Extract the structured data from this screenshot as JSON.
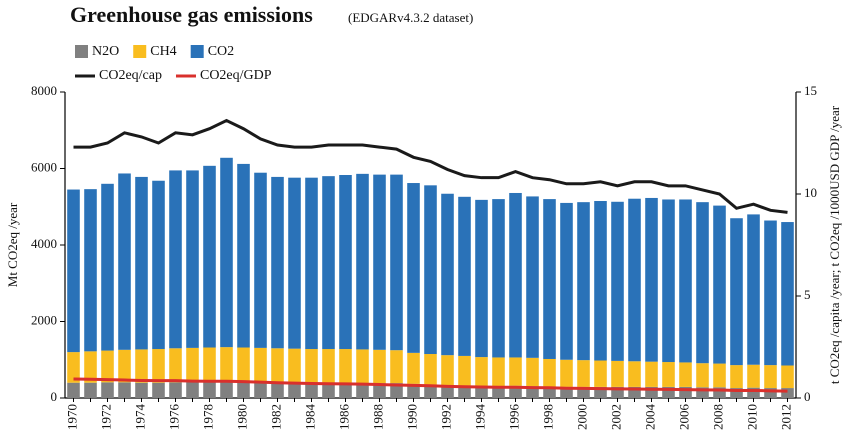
{
  "chart_data": {
    "type": "bar",
    "stacked": true,
    "title": "Greenhouse gas emissions",
    "subtitle": "(EDGARv4.3.2 dataset)",
    "y_label": "Mt CO2eq /year",
    "y2_label": "t CO2eq /capita /year; t CO2eq /1000USD GDP /year",
    "categories": [
      "1970",
      null,
      "1972",
      null,
      "1974",
      null,
      "1976",
      null,
      "1978",
      null,
      "1980",
      null,
      "1982",
      null,
      "1984",
      null,
      "1986",
      null,
      "1988",
      null,
      "1990",
      null,
      "1992",
      null,
      "1994",
      null,
      "1996",
      null,
      "1998",
      null,
      "2000",
      null,
      "2002",
      null,
      "2004",
      null,
      "2006",
      null,
      "2008",
      null,
      "2010",
      null,
      "2012"
    ],
    "series": [
      {
        "name": "N2O",
        "color": "#808080",
        "values": [
          400,
          400,
          410,
          410,
          400,
          400,
          410,
          410,
          410,
          420,
          410,
          400,
          400,
          390,
          390,
          390,
          390,
          390,
          390,
          390,
          370,
          350,
          330,
          320,
          310,
          310,
          320,
          310,
          300,
          290,
          290,
          290,
          290,
          290,
          290,
          290,
          290,
          280,
          280,
          260,
          270,
          260,
          260
        ]
      },
      {
        "name": "CH4",
        "color": "#f9bd1f",
        "values": [
          800,
          820,
          830,
          850,
          870,
          880,
          890,
          900,
          910,
          910,
          910,
          910,
          900,
          900,
          890,
          890,
          890,
          880,
          870,
          860,
          810,
          800,
          790,
          780,
          760,
          750,
          740,
          740,
          720,
          710,
          700,
          690,
          680,
          670,
          660,
          650,
          640,
          630,
          620,
          600,
          600,
          600,
          590
        ]
      },
      {
        "name": "CO2",
        "color": "#2a72b8",
        "values": [
          4250,
          4240,
          4360,
          4610,
          4510,
          4400,
          4650,
          4640,
          4750,
          4950,
          4800,
          4580,
          4480,
          4470,
          4480,
          4520,
          4550,
          4590,
          4580,
          4590,
          4440,
          4410,
          4220,
          4160,
          4110,
          4140,
          4300,
          4220,
          4180,
          4100,
          4130,
          4170,
          4160,
          4250,
          4280,
          4250,
          4260,
          4210,
          4130,
          3840,
          3930,
          3780,
          3750
        ]
      },
      {
        "name": "CO2eq/cap",
        "type": "line",
        "axis": "y2",
        "color": "#1a1a1a",
        "values": [
          12.3,
          12.3,
          12.5,
          13.0,
          12.8,
          12.5,
          13.0,
          12.9,
          13.2,
          13.6,
          13.2,
          12.7,
          12.4,
          12.3,
          12.3,
          12.4,
          12.4,
          12.4,
          12.3,
          12.2,
          11.8,
          11.6,
          11.2,
          10.9,
          10.8,
          10.8,
          11.1,
          10.8,
          10.7,
          10.5,
          10.5,
          10.6,
          10.4,
          10.6,
          10.6,
          10.4,
          10.4,
          10.2,
          10.0,
          9.3,
          9.5,
          9.2,
          9.1
        ]
      },
      {
        "name": "CO2eq/GDP",
        "type": "line",
        "axis": "y2",
        "color": "#d9302c",
        "values": [
          0.93,
          0.92,
          0.9,
          0.88,
          0.86,
          0.85,
          0.85,
          0.83,
          0.82,
          0.82,
          0.8,
          0.78,
          0.75,
          0.73,
          0.71,
          0.7,
          0.69,
          0.68,
          0.66,
          0.64,
          0.62,
          0.6,
          0.57,
          0.55,
          0.54,
          0.53,
          0.53,
          0.51,
          0.5,
          0.48,
          0.47,
          0.46,
          0.45,
          0.44,
          0.43,
          0.42,
          0.41,
          0.4,
          0.39,
          0.37,
          0.37,
          0.35,
          0.34
        ]
      }
    ],
    "ylim": [
      0,
      8000
    ],
    "yticks": [
      0,
      2000,
      4000,
      6000,
      8000
    ],
    "y2lim": [
      0,
      15
    ],
    "y2ticks": [
      0,
      5,
      10,
      15
    ],
    "grid": false
  }
}
